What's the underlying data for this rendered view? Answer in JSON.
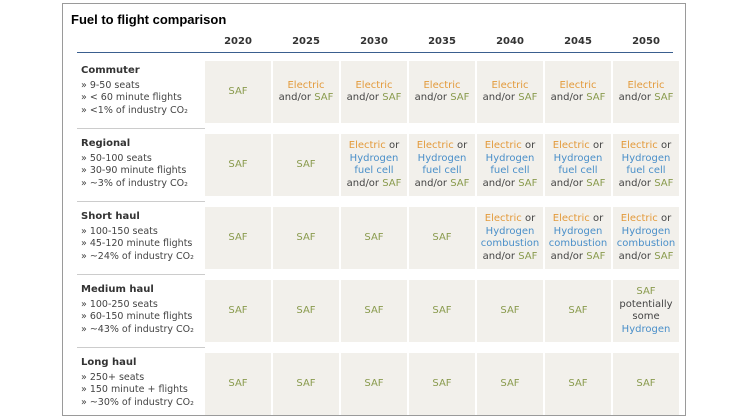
{
  "title": "Fuel to flight comparison",
  "table": {
    "columns": [
      "2020",
      "2025",
      "2030",
      "2035",
      "2040",
      "2045",
      "2050"
    ],
    "rows": [
      {
        "name": "Commuter",
        "details": [
          "» 9-50 seats",
          "» < 60 minute flights",
          "» <1% of industry CO₂"
        ],
        "cells": [
          [
            {
              "text": "SAF",
              "color": "#8a9b4e"
            }
          ],
          [
            {
              "text": "Electric",
              "color": "#e39a3b"
            },
            {
              "text": "and/or",
              "color": "#444444"
            },
            {
              "text": "SAF",
              "color": "#8a9b4e"
            }
          ],
          [
            {
              "text": "Electric",
              "color": "#e39a3b"
            },
            {
              "text": "and/or",
              "color": "#444444"
            },
            {
              "text": "SAF",
              "color": "#8a9b4e"
            }
          ],
          [
            {
              "text": "Electric",
              "color": "#e39a3b"
            },
            {
              "text": "and/or",
              "color": "#444444"
            },
            {
              "text": "SAF",
              "color": "#8a9b4e"
            }
          ],
          [
            {
              "text": "Electric",
              "color": "#e39a3b"
            },
            {
              "text": "and/or",
              "color": "#444444"
            },
            {
              "text": "SAF",
              "color": "#8a9b4e"
            }
          ],
          [
            {
              "text": "Electric",
              "color": "#e39a3b"
            },
            {
              "text": "and/or",
              "color": "#444444"
            },
            {
              "text": "SAF",
              "color": "#8a9b4e"
            }
          ],
          [
            {
              "text": "Electric",
              "color": "#e39a3b"
            },
            {
              "text": "and/or",
              "color": "#444444"
            },
            {
              "text": "SAF",
              "color": "#8a9b4e"
            }
          ]
        ]
      },
      {
        "name": "Regional",
        "details": [
          "» 50-100 seats",
          "» 30-90 minute flights",
          "» ~3% of industry CO₂"
        ],
        "cells": [
          [
            {
              "text": "SAF",
              "color": "#8a9b4e"
            }
          ],
          [
            {
              "text": "SAF",
              "color": "#8a9b4e"
            }
          ],
          [
            {
              "text": "Electric",
              "color": "#e39a3b"
            },
            {
              "text": "or",
              "color": "#444444"
            },
            {
              "text": "Hydrogen fuel cell",
              "color": "#4a8fc9"
            },
            {
              "text": "and/or",
              "color": "#444444"
            },
            {
              "text": "SAF",
              "color": "#8a9b4e"
            }
          ],
          [
            {
              "text": "Electric",
              "color": "#e39a3b"
            },
            {
              "text": "or",
              "color": "#444444"
            },
            {
              "text": "Hydrogen fuel cell",
              "color": "#4a8fc9"
            },
            {
              "text": "and/or",
              "color": "#444444"
            },
            {
              "text": "SAF",
              "color": "#8a9b4e"
            }
          ],
          [
            {
              "text": "Electric",
              "color": "#e39a3b"
            },
            {
              "text": "or",
              "color": "#444444"
            },
            {
              "text": "Hydrogen fuel cell",
              "color": "#4a8fc9"
            },
            {
              "text": "and/or",
              "color": "#444444"
            },
            {
              "text": "SAF",
              "color": "#8a9b4e"
            }
          ],
          [
            {
              "text": "Electric",
              "color": "#e39a3b"
            },
            {
              "text": "or",
              "color": "#444444"
            },
            {
              "text": "Hydrogen fuel cell",
              "color": "#4a8fc9"
            },
            {
              "text": "and/or",
              "color": "#444444"
            },
            {
              "text": "SAF",
              "color": "#8a9b4e"
            }
          ],
          [
            {
              "text": "Electric",
              "color": "#e39a3b"
            },
            {
              "text": "or",
              "color": "#444444"
            },
            {
              "text": "Hydrogen fuel cell",
              "color": "#4a8fc9"
            },
            {
              "text": "and/or",
              "color": "#444444"
            },
            {
              "text": "SAF",
              "color": "#8a9b4e"
            }
          ]
        ]
      },
      {
        "name": "Short haul",
        "details": [
          "» 100-150 seats",
          "» 45-120 minute flights",
          "» ~24% of industry CO₂"
        ],
        "cells": [
          [
            {
              "text": "SAF",
              "color": "#8a9b4e"
            }
          ],
          [
            {
              "text": "SAF",
              "color": "#8a9b4e"
            }
          ],
          [
            {
              "text": "SAF",
              "color": "#8a9b4e"
            }
          ],
          [
            {
              "text": "SAF",
              "color": "#8a9b4e"
            }
          ],
          [
            {
              "text": "Electric",
              "color": "#e39a3b"
            },
            {
              "text": "or",
              "color": "#444444"
            },
            {
              "text": "Hydrogen combustion",
              "color": "#4a8fc9"
            },
            {
              "text": "and/or",
              "color": "#444444"
            },
            {
              "text": "SAF",
              "color": "#8a9b4e"
            }
          ],
          [
            {
              "text": "Electric",
              "color": "#e39a3b"
            },
            {
              "text": "or",
              "color": "#444444"
            },
            {
              "text": "Hydrogen combustion",
              "color": "#4a8fc9"
            },
            {
              "text": "and/or",
              "color": "#444444"
            },
            {
              "text": "SAF",
              "color": "#8a9b4e"
            }
          ],
          [
            {
              "text": "Electric",
              "color": "#e39a3b"
            },
            {
              "text": "or",
              "color": "#444444"
            },
            {
              "text": "Hydrogen combustion",
              "color": "#4a8fc9"
            },
            {
              "text": "and/or",
              "color": "#444444"
            },
            {
              "text": "SAF",
              "color": "#8a9b4e"
            }
          ]
        ]
      },
      {
        "name": "Medium haul",
        "details": [
          "» 100-250 seats",
          "» 60-150 minute flights",
          "» ~43% of industry CO₂"
        ],
        "cells": [
          [
            {
              "text": "SAF",
              "color": "#8a9b4e"
            }
          ],
          [
            {
              "text": "SAF",
              "color": "#8a9b4e"
            }
          ],
          [
            {
              "text": "SAF",
              "color": "#8a9b4e"
            }
          ],
          [
            {
              "text": "SAF",
              "color": "#8a9b4e"
            }
          ],
          [
            {
              "text": "SAF",
              "color": "#8a9b4e"
            }
          ],
          [
            {
              "text": "SAF",
              "color": "#8a9b4e"
            }
          ],
          [
            {
              "text": "SAF",
              "color": "#8a9b4e"
            },
            {
              "text": "potentially some",
              "color": "#444444"
            },
            {
              "text": "Hydrogen",
              "color": "#4a8fc9"
            }
          ]
        ]
      },
      {
        "name": "Long haul",
        "details": [
          "» 250+ seats",
          "» 150 minute + flights",
          "» ~30% of industry CO₂"
        ],
        "cells": [
          [
            {
              "text": "SAF",
              "color": "#8a9b4e"
            }
          ],
          [
            {
              "text": "SAF",
              "color": "#8a9b4e"
            }
          ],
          [
            {
              "text": "SAF",
              "color": "#8a9b4e"
            }
          ],
          [
            {
              "text": "SAF",
              "color": "#8a9b4e"
            }
          ],
          [
            {
              "text": "SAF",
              "color": "#8a9b4e"
            }
          ],
          [
            {
              "text": "SAF",
              "color": "#8a9b4e"
            }
          ],
          [
            {
              "text": "SAF",
              "color": "#8a9b4e"
            }
          ]
        ]
      }
    ]
  }
}
